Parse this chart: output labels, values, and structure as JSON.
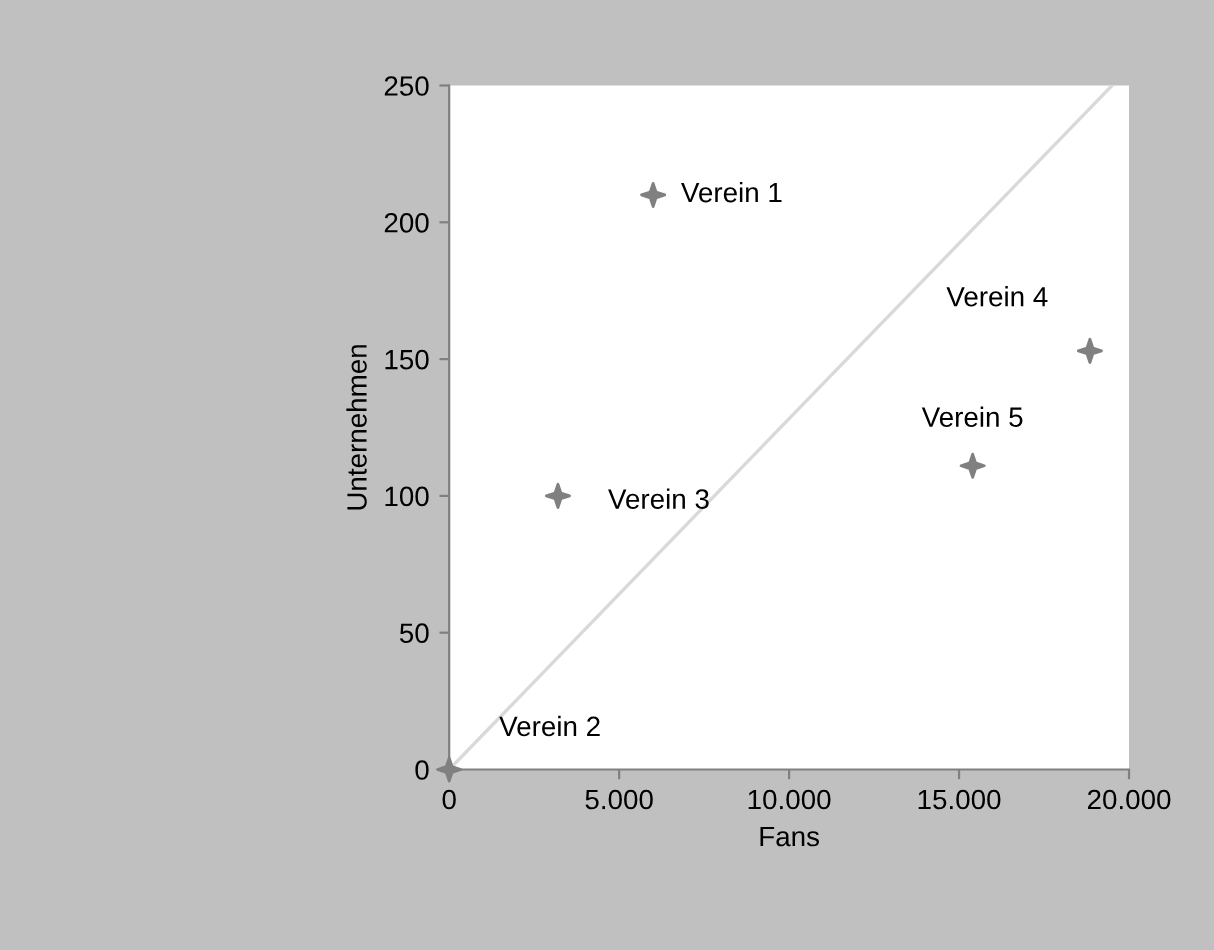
{
  "chart_data": {
    "type": "scatter",
    "xlabel": "Fans",
    "ylabel": "Unternehmen",
    "x": [
      6000,
      0,
      3200,
      18850,
      15400
    ],
    "series": [
      {
        "color": "#808080",
        "marker": "star",
        "values": [
          210,
          0,
          100,
          153,
          111
        ]
      },
      {
        "type": "line",
        "color": "#d9d9d9",
        "marker": "none",
        "x": [
          0,
          19500
        ],
        "values": [
          0,
          250
        ]
      }
    ],
    "xlim": [
      0,
      20000
    ],
    "ylim": [
      0,
      250
    ],
    "xticks": [
      0,
      {
        "value": 5000,
        "label": "5.000"
      },
      {
        "value": 10000,
        "label": "10.000"
      },
      {
        "value": 15000,
        "label": "15.000"
      },
      {
        "value": 20000,
        "label": "20.000"
      }
    ],
    "yticks": [
      0,
      50,
      100,
      150,
      200,
      250
    ],
    "grid": false,
    "annotations": [
      {
        "text": "Verein 1",
        "x": 6000,
        "y": 210
      },
      {
        "text": "Verein 2",
        "x": 0,
        "y": 0
      },
      {
        "text": "Verein 3",
        "x": 3200,
        "y": 100
      },
      {
        "text": "Verein 4",
        "x": 18850,
        "y": 153
      },
      {
        "text": "Verein 5",
        "x": 15400,
        "y": 111
      }
    ]
  }
}
